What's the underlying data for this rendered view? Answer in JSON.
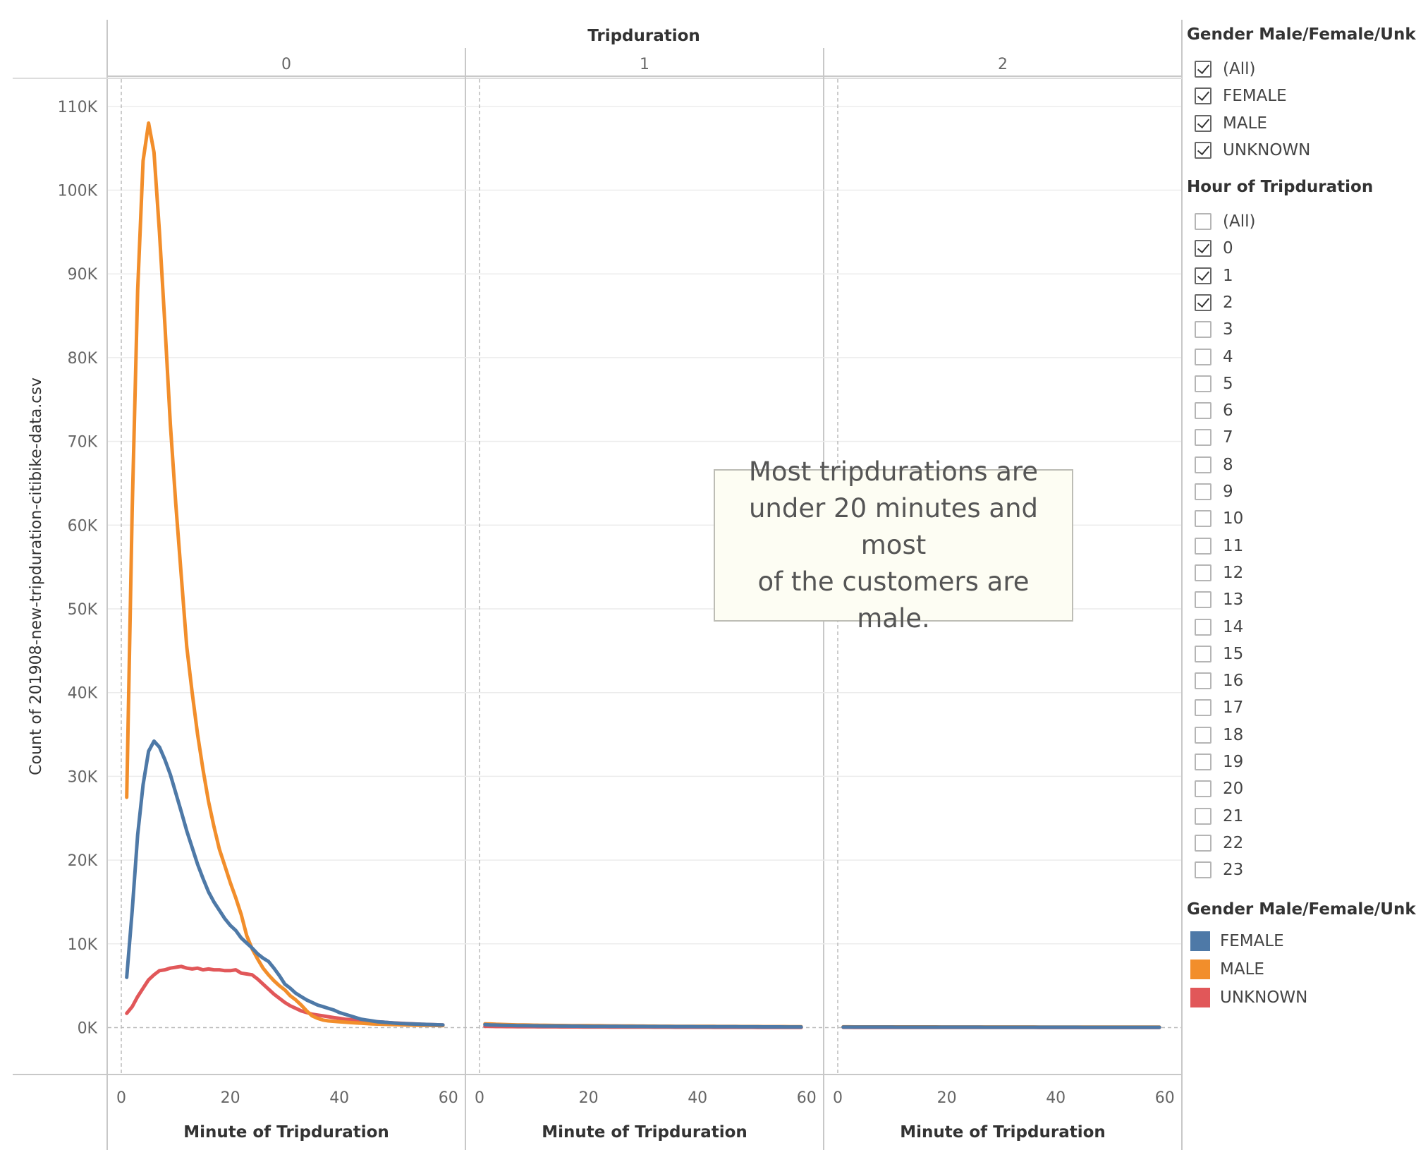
{
  "chart_data": {
    "type": "line",
    "column_header": "Tripduration",
    "panels": [
      "0",
      "1",
      "2"
    ],
    "xlabel": "Minute of Tripduration",
    "ylabel": "Count of 201908-new-tripduration-citibike-data.csv",
    "x_ticks": [
      0,
      20,
      40,
      60
    ],
    "y_ticks": [
      "0K",
      "10K",
      "20K",
      "30K",
      "40K",
      "50K",
      "60K",
      "70K",
      "80K",
      "90K",
      "100K",
      "110K"
    ],
    "xlim": [
      -2.5,
      62
    ],
    "ylim": [
      -5500,
      115000
    ],
    "grid": true,
    "x": [
      1,
      2,
      3,
      4,
      5,
      6,
      7,
      8,
      9,
      10,
      11,
      12,
      13,
      14,
      15,
      16,
      17,
      18,
      19,
      20,
      21,
      22,
      23,
      24,
      25,
      26,
      27,
      28,
      29,
      30,
      31,
      32,
      33,
      34,
      35,
      36,
      37,
      38,
      39,
      40,
      41,
      42,
      43,
      44,
      45,
      46,
      47,
      48,
      49,
      50,
      51,
      52,
      53,
      54,
      55,
      56,
      57,
      58,
      59
    ],
    "series": [
      {
        "name": "FEMALE",
        "color": "#4e79a7",
        "panel_values": [
          [
            6000,
            14000,
            23000,
            29000,
            33000,
            34200,
            33500,
            32000,
            30200,
            28000,
            25800,
            23500,
            21500,
            19500,
            17800,
            16200,
            15000,
            14000,
            13000,
            12200,
            11600,
            10700,
            10100,
            9500,
            8800,
            8300,
            7900,
            7100,
            6200,
            5200,
            4700,
            4100,
            3700,
            3300,
            3000,
            2700,
            2500,
            2300,
            2100,
            1800,
            1600,
            1400,
            1200,
            1000,
            900,
            800,
            700,
            650,
            600,
            550,
            500,
            470,
            450,
            420,
            400,
            380,
            360,
            340,
            320
          ],
          [
            350,
            320,
            300,
            280,
            260,
            250,
            240,
            230,
            220,
            210,
            200,
            195,
            190,
            185,
            180,
            175,
            170,
            165,
            160,
            155,
            150,
            148,
            146,
            144,
            142,
            140,
            138,
            136,
            134,
            132,
            130,
            128,
            126,
            124,
            122,
            120,
            118,
            116,
            114,
            112,
            110,
            108,
            106,
            104,
            102,
            100,
            98,
            96,
            94,
            92,
            90,
            88,
            86,
            84,
            82,
            80,
            78,
            76,
            74
          ],
          [
            60,
            60,
            58,
            58,
            57,
            57,
            56,
            56,
            55,
            55,
            54,
            54,
            53,
            53,
            52,
            52,
            51,
            51,
            50,
            50,
            49,
            49,
            48,
            48,
            47,
            47,
            46,
            46,
            45,
            45,
            44,
            44,
            43,
            43,
            42,
            42,
            41,
            41,
            40,
            40,
            39,
            39,
            38,
            38,
            37,
            37,
            36,
            36,
            35,
            35,
            34,
            34,
            33,
            33,
            32,
            32,
            31,
            31,
            30
          ]
        ]
      },
      {
        "name": "MALE",
        "color": "#f28e2b",
        "panel_values": [
          [
            27500,
            62000,
            88000,
            103500,
            108000,
            104500,
            95000,
            84000,
            72000,
            62500,
            54000,
            45500,
            40000,
            35000,
            30800,
            27000,
            24000,
            21300,
            19300,
            17300,
            15500,
            13500,
            11000,
            9400,
            8200,
            7100,
            6300,
            5600,
            5000,
            4500,
            3800,
            3300,
            2700,
            2000,
            1400,
            1100,
            900,
            800,
            750,
            700,
            650,
            600,
            560,
            520,
            480,
            450,
            420,
            400,
            380,
            360,
            340,
            320,
            300,
            290,
            280,
            270,
            260,
            250,
            240
          ],
          [
            450,
            430,
            400,
            380,
            360,
            340,
            320,
            310,
            300,
            290,
            280,
            270,
            260,
            255,
            250,
            245,
            240,
            235,
            230,
            225,
            220,
            215,
            210,
            205,
            200,
            195,
            190,
            185,
            180,
            175,
            170,
            165,
            160,
            158,
            156,
            154,
            152,
            150,
            148,
            146,
            144,
            142,
            140,
            138,
            136,
            134,
            132,
            130,
            128,
            126,
            124,
            122,
            120,
            118,
            116,
            114,
            112,
            110,
            108
          ],
          [
            90,
            90,
            88,
            88,
            87,
            87,
            86,
            86,
            85,
            85,
            84,
            84,
            83,
            83,
            82,
            82,
            81,
            81,
            80,
            80,
            79,
            79,
            78,
            78,
            77,
            77,
            76,
            76,
            75,
            75,
            74,
            74,
            73,
            73,
            72,
            72,
            71,
            71,
            70,
            70,
            69,
            69,
            68,
            68,
            67,
            67,
            66,
            66,
            65,
            65,
            64,
            64,
            63,
            63,
            62,
            62,
            61,
            61,
            60
          ]
        ]
      },
      {
        "name": "UNKNOWN",
        "color": "#e15759",
        "panel_values": [
          [
            1700,
            2500,
            3700,
            4700,
            5700,
            6300,
            6800,
            6900,
            7100,
            7200,
            7300,
            7100,
            7000,
            7100,
            6900,
            7000,
            6900,
            6900,
            6800,
            6800,
            6900,
            6500,
            6400,
            6300,
            5800,
            5200,
            4600,
            4000,
            3500,
            3000,
            2600,
            2300,
            2000,
            1800,
            1600,
            1500,
            1400,
            1300,
            1200,
            1100,
            1000,
            950,
            900,
            850,
            800,
            750,
            700,
            650,
            600,
            560,
            520,
            490,
            460,
            430,
            400,
            380,
            360,
            340,
            320
          ],
          [
            150,
            140,
            130,
            125,
            120,
            115,
            110,
            105,
            100,
            98,
            96,
            94,
            92,
            90,
            88,
            86,
            84,
            82,
            80,
            78,
            76,
            74,
            72,
            70,
            68,
            66,
            64,
            62,
            60,
            58,
            56,
            54,
            52,
            50,
            48,
            46,
            44,
            42,
            40,
            40,
            39,
            38,
            37,
            36,
            35,
            34,
            33,
            32,
            31,
            30,
            29,
            28,
            27,
            26,
            25,
            24,
            23,
            22,
            21
          ],
          [
            30,
            30,
            29,
            29,
            28,
            28,
            27,
            27,
            26,
            26,
            25,
            25,
            24,
            24,
            23,
            23,
            22,
            22,
            21,
            21,
            20,
            20,
            19,
            19,
            18,
            18,
            17,
            17,
            16,
            16,
            15,
            15,
            14,
            14,
            13,
            13,
            12,
            12,
            11,
            11,
            10,
            10,
            10,
            10,
            10,
            10,
            10,
            10,
            10,
            10,
            10,
            10,
            10,
            10,
            10,
            10,
            10,
            10,
            10
          ]
        ]
      }
    ]
  },
  "annotation": {
    "lines": [
      "Most tripdurations are",
      "under 20 minutes and most",
      "of the customers are male."
    ]
  },
  "filters": [
    {
      "title": "Gender Male/Female/Unk..",
      "items": [
        {
          "label": "(All)",
          "checked": true
        },
        {
          "label": "FEMALE",
          "checked": true
        },
        {
          "label": "MALE",
          "checked": true
        },
        {
          "label": "UNKNOWN",
          "checked": true
        }
      ]
    },
    {
      "title": "Hour of Tripduration",
      "items": [
        {
          "label": "(All)",
          "checked": false
        },
        {
          "label": "0",
          "checked": true
        },
        {
          "label": "1",
          "checked": true
        },
        {
          "label": "2",
          "checked": true
        },
        {
          "label": "3",
          "checked": false
        },
        {
          "label": "4",
          "checked": false
        },
        {
          "label": "5",
          "checked": false
        },
        {
          "label": "6",
          "checked": false
        },
        {
          "label": "7",
          "checked": false
        },
        {
          "label": "8",
          "checked": false
        },
        {
          "label": "9",
          "checked": false
        },
        {
          "label": "10",
          "checked": false
        },
        {
          "label": "11",
          "checked": false
        },
        {
          "label": "12",
          "checked": false
        },
        {
          "label": "13",
          "checked": false
        },
        {
          "label": "14",
          "checked": false
        },
        {
          "label": "15",
          "checked": false
        },
        {
          "label": "16",
          "checked": false
        },
        {
          "label": "17",
          "checked": false
        },
        {
          "label": "18",
          "checked": false
        },
        {
          "label": "19",
          "checked": false
        },
        {
          "label": "20",
          "checked": false
        },
        {
          "label": "21",
          "checked": false
        },
        {
          "label": "22",
          "checked": false
        },
        {
          "label": "23",
          "checked": false
        }
      ]
    }
  ],
  "legend": {
    "title": "Gender Male/Female/Unk..",
    "items": [
      {
        "label": "FEMALE",
        "color": "#4e79a7"
      },
      {
        "label": "MALE",
        "color": "#f28e2b"
      },
      {
        "label": "UNKNOWN",
        "color": "#e15759"
      }
    ]
  }
}
